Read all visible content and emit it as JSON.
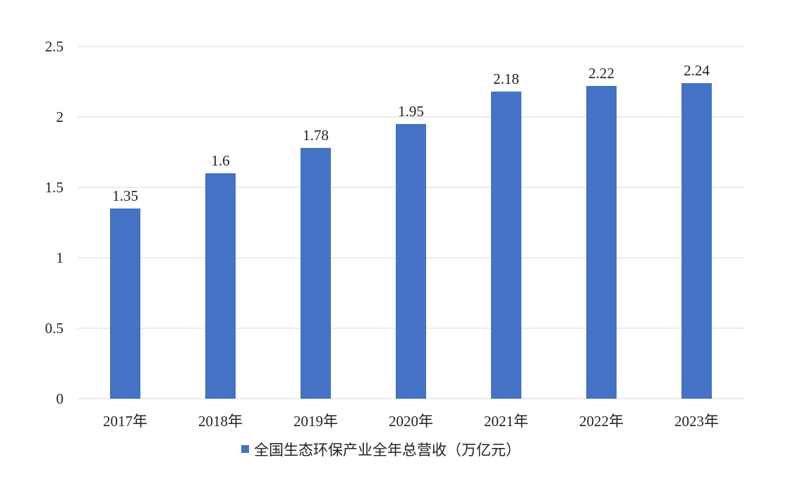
{
  "chart_data": {
    "type": "bar",
    "categories": [
      "2017年",
      "2018年",
      "2019年",
      "2020年",
      "2021年",
      "2022年",
      "2023年"
    ],
    "series": [
      {
        "name": "全国生态环保产业全年总营收（万亿元）",
        "values": [
          1.35,
          1.6,
          1.78,
          1.95,
          2.18,
          2.22,
          2.24
        ],
        "color": "#4472C4"
      }
    ],
    "y_ticks": [
      "0",
      "0.5",
      "1",
      "1.5",
      "2",
      "2.5"
    ],
    "ylim": [
      0,
      2.5
    ],
    "grid": true,
    "gridline_color": "#D9D9D9",
    "legend_position": "bottom",
    "data_labels": [
      "1.35",
      "1.6",
      "1.78",
      "1.95",
      "2.18",
      "2.22",
      "2.24"
    ]
  }
}
